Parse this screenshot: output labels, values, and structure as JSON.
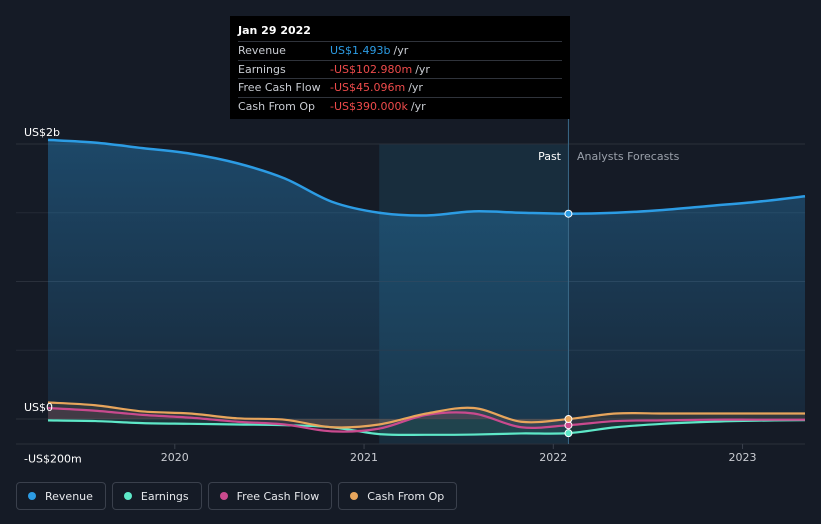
{
  "tooltip": {
    "date": "Jan 29 2022",
    "rows": [
      {
        "label": "Revenue",
        "value": "US$1.493b",
        "unit": "/yr",
        "color": "#2c9ce4"
      },
      {
        "label": "Earnings",
        "value": "-US$102.980m",
        "unit": "/yr",
        "color": "#ee4b4b"
      },
      {
        "label": "Free Cash Flow",
        "value": "-US$45.096m",
        "unit": "/yr",
        "color": "#ee4b4b"
      },
      {
        "label": "Cash From Op",
        "value": "-US$390.000k",
        "unit": "/yr",
        "color": "#ee4b4b"
      }
    ]
  },
  "labels": {
    "past": "Past",
    "forecast": "Analysts Forecasts"
  },
  "legend": [
    {
      "label": "Revenue",
      "color": "#2c9ce4"
    },
    {
      "label": "Earnings",
      "color": "#5ee8c8"
    },
    {
      "label": "Free Cash Flow",
      "color": "#c94a8e"
    },
    {
      "label": "Cash From Op",
      "color": "#e7a55c"
    }
  ],
  "chart_data": {
    "type": "line",
    "title": "",
    "xlabel": "",
    "ylabel": "",
    "y_unit": "US$m",
    "ylim": [
      -200,
      2000
    ],
    "y_ticks": [
      {
        "value": 2000,
        "label": "US$2b"
      },
      {
        "value": 0,
        "label": "US$0"
      },
      {
        "value": -200,
        "label": "-US$200m"
      }
    ],
    "xlim": [
      2019.33,
      2023.33
    ],
    "x_ticks": [
      {
        "value": 2020,
        "label": "2020"
      },
      {
        "value": 2021,
        "label": "2021"
      },
      {
        "value": 2022,
        "label": "2022"
      },
      {
        "value": 2023,
        "label": "2023"
      }
    ],
    "past_end": 2022.08,
    "shaded_start": 2021.08,
    "highlight_x": 2022.08,
    "series": [
      {
        "name": "Revenue",
        "color": "#2c9ce4",
        "area": true,
        "x": [
          2019.33,
          2019.58,
          2019.83,
          2020.08,
          2020.33,
          2020.58,
          2020.83,
          2021.08,
          2021.33,
          2021.58,
          2021.83,
          2022.08,
          2022.33,
          2022.58,
          2022.83,
          2023.08,
          2023.33
        ],
        "values": [
          2030,
          2010,
          1970,
          1930,
          1860,
          1750,
          1580,
          1500,
          1480,
          1510,
          1500,
          1493,
          1500,
          1520,
          1550,
          1580,
          1620
        ]
      },
      {
        "name": "Earnings",
        "color": "#5ee8c8",
        "area": false,
        "x": [
          2019.33,
          2019.58,
          2019.83,
          2020.08,
          2020.33,
          2020.58,
          2020.83,
          2021.08,
          2021.33,
          2021.58,
          2021.83,
          2022.08,
          2022.33,
          2022.58,
          2022.83,
          2023.08,
          2023.33
        ],
        "values": [
          -10,
          -15,
          -30,
          -35,
          -40,
          -45,
          -60,
          -110,
          -115,
          -113,
          -105,
          -102.98,
          -60,
          -35,
          -20,
          -12,
          -8
        ]
      },
      {
        "name": "Free Cash Flow",
        "color": "#c94a8e",
        "area": false,
        "x": [
          2019.33,
          2019.58,
          2019.83,
          2020.08,
          2020.33,
          2020.58,
          2020.83,
          2021.08,
          2021.33,
          2021.58,
          2021.83,
          2022.08,
          2022.33,
          2022.58,
          2022.83,
          2023.08,
          2023.33
        ],
        "values": [
          80,
          60,
          30,
          10,
          -20,
          -40,
          -90,
          -70,
          30,
          40,
          -60,
          -45.096,
          -15,
          -10,
          -5,
          -5,
          -5
        ]
      },
      {
        "name": "Cash From Op",
        "color": "#e7a55c",
        "area": false,
        "x": [
          2019.33,
          2019.58,
          2019.83,
          2020.08,
          2020.33,
          2020.58,
          2020.83,
          2021.08,
          2021.33,
          2021.58,
          2021.83,
          2022.08,
          2022.33,
          2022.58,
          2022.83,
          2023.08,
          2023.33
        ],
        "values": [
          120,
          100,
          55,
          40,
          5,
          -5,
          -60,
          -40,
          40,
          80,
          -20,
          -0.39,
          40,
          40,
          40,
          40,
          40
        ]
      }
    ]
  }
}
